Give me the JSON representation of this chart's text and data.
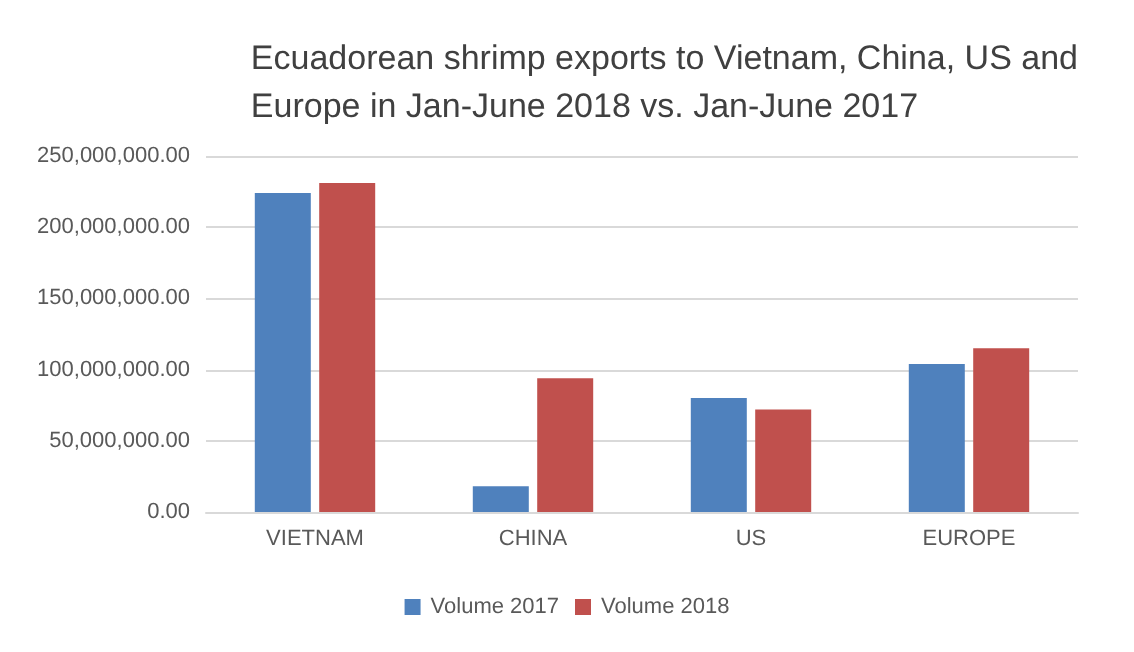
{
  "chart_data": {
    "type": "bar",
    "title": "Ecuadorean shrimp exports to Vietnam, China, US and\nEurope in Jan-June 2018 vs. Jan-June 2017",
    "categories": [
      "VIETNAM",
      "CHINA",
      "US",
      "EUROPE"
    ],
    "series": [
      {
        "name": "Volume 2017",
        "color": "#4f81bd",
        "values": [
          224000000,
          18000000,
          80000000,
          104000000
        ]
      },
      {
        "name": "Volume 2018",
        "color": "#c0504d",
        "values": [
          231000000,
          94000000,
          72000000,
          115000000
        ]
      }
    ],
    "ylim": [
      0,
      250000000
    ],
    "yticks": [
      {
        "value": 0,
        "label": "0.00"
      },
      {
        "value": 50000000,
        "label": "50,000,000.00"
      },
      {
        "value": 100000000,
        "label": "100,000,000.00"
      },
      {
        "value": 150000000,
        "label": "150,000,000.00"
      },
      {
        "value": 200000000,
        "label": "200,000,000.00"
      },
      {
        "value": 250000000,
        "label": "250,000,000.00"
      }
    ],
    "grid": "y",
    "legend": "bottom"
  }
}
